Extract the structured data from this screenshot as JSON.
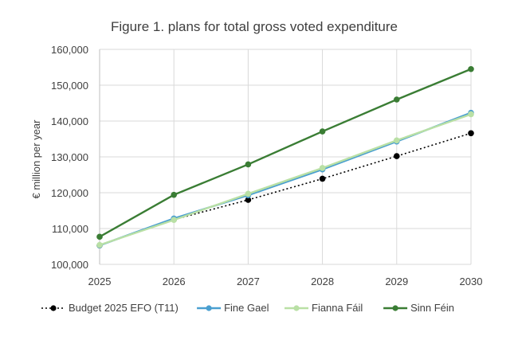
{
  "chart_data": {
    "type": "line",
    "title": "Figure 1. plans for total gross voted expenditure",
    "xlabel": "",
    "ylabel": "€ million per year",
    "x": [
      2025,
      2026,
      2027,
      2028,
      2029,
      2030
    ],
    "x_tick_labels": [
      "2025",
      "2026",
      "2027",
      "2028",
      "2029",
      "2030"
    ],
    "ylim": [
      100000,
      160000
    ],
    "y_ticks": [
      100000,
      110000,
      120000,
      130000,
      140000,
      150000,
      160000
    ],
    "y_tick_labels": [
      "100,000",
      "110,000",
      "120,000",
      "130,000",
      "140,000",
      "150,000",
      "160,000"
    ],
    "grid": true,
    "legend_position": "bottom",
    "series": [
      {
        "name": "Budget 2025 EFO (T11)",
        "color": "#000000",
        "marker_color": "#000000",
        "style": "dotted",
        "values": [
          105300,
          112500,
          118000,
          123900,
          130200,
          136600
        ]
      },
      {
        "name": "Fine Gael",
        "color": "#4a9fd0",
        "marker_color": "#4a9fd0",
        "style": "solid",
        "values": [
          105300,
          112800,
          119300,
          126500,
          134300,
          142300
        ]
      },
      {
        "name": "Fianna Fáil",
        "color": "#b9e0a5",
        "marker_color": "#b9e0a5",
        "style": "solid",
        "values": [
          105400,
          112400,
          119700,
          126900,
          134600,
          141900
        ]
      },
      {
        "name": "Sinn Féin",
        "color": "#3a7d34",
        "marker_color": "#3a7d34",
        "style": "solid",
        "values": [
          107700,
          119400,
          127900,
          137100,
          146000,
          154500
        ]
      }
    ]
  }
}
